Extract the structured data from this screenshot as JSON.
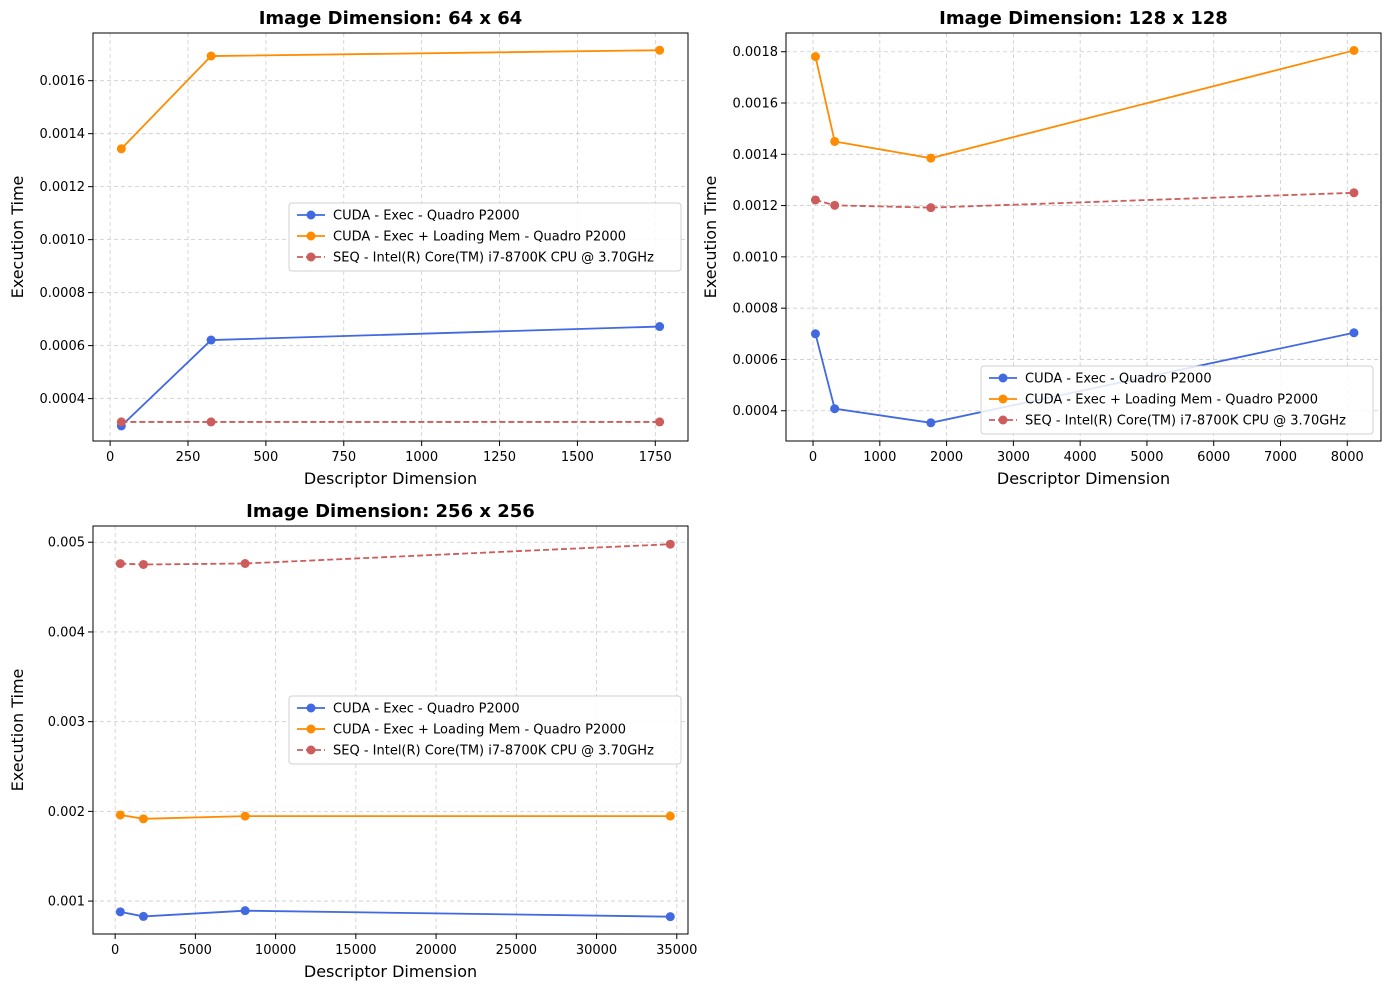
{
  "colors": {
    "cuda_exec": "#4169e1",
    "cuda_exec_mem": "#ff8c00",
    "seq": "#cd5c5c",
    "grid": "#cccccc",
    "axes": "#000000"
  },
  "chart_data": [
    {
      "type": "line",
      "title": "Image Dimension: 64 x 64",
      "xlabel": "Descriptor Dimension",
      "ylabel": "Execution Time",
      "grid": true,
      "legend_position": "center-right",
      "xlim": [
        -55,
        1855
      ],
      "ylim": [
        0.00024,
        0.00178
      ],
      "xticks": [
        0,
        250,
        500,
        750,
        1000,
        1250,
        1500,
        1750
      ],
      "xtick_labels": [
        "0",
        "250",
        "500",
        "750",
        "1000",
        "1250",
        "1500",
        "1750"
      ],
      "yticks": [
        0.0004,
        0.0006,
        0.0008,
        0.001,
        0.0012,
        0.0014,
        0.0016
      ],
      "ytick_labels": [
        "0.0004",
        "0.0006",
        "0.0008",
        "0.0010",
        "0.0012",
        "0.0014",
        "0.0016"
      ],
      "series": [
        {
          "name": "CUDA - Exec - Quadro P2000",
          "key": "cuda_exec",
          "style": "solid",
          "x": [
            36,
            324,
            1764
          ],
          "y": [
            0.000297,
            0.000621,
            0.000672
          ]
        },
        {
          "name": "CUDA - Exec + Loading Mem - Quadro P2000",
          "key": "cuda_exec_mem",
          "style": "solid",
          "x": [
            36,
            324,
            1764
          ],
          "y": [
            0.001343,
            0.001693,
            0.001715
          ]
        },
        {
          "name": "SEQ - Intel(R) Core(TM) i7-8700K CPU @ 3.70GHz",
          "key": "seq",
          "style": "dashed",
          "x": [
            36,
            324,
            1764
          ],
          "y": [
            0.000312,
            0.000312,
            0.000312
          ]
        }
      ]
    },
    {
      "type": "line",
      "title": "Image Dimension: 128 x 128",
      "xlabel": "Descriptor Dimension",
      "ylabel": "Execution Time",
      "grid": true,
      "legend_position": "lower-right",
      "xlim": [
        -405,
        8505
      ],
      "ylim": [
        0.000282,
        0.001873
      ],
      "xticks": [
        0,
        1000,
        2000,
        3000,
        4000,
        5000,
        6000,
        7000,
        8000
      ],
      "xtick_labels": [
        "0",
        "1000",
        "2000",
        "3000",
        "4000",
        "5000",
        "6000",
        "7000",
        "8000"
      ],
      "yticks": [
        0.0004,
        0.0006,
        0.0008,
        0.001,
        0.0012,
        0.0014,
        0.0016,
        0.0018
      ],
      "ytick_labels": [
        "0.0004",
        "0.0006",
        "0.0008",
        "0.0010",
        "0.0012",
        "0.0014",
        "0.0016",
        "0.0018"
      ],
      "series": [
        {
          "name": "CUDA - Exec - Quadro P2000",
          "key": "cuda_exec",
          "style": "solid",
          "x": [
            36,
            324,
            1764,
            8100
          ],
          "y": [
            0.0007,
            0.000408,
            0.000353,
            0.000704
          ]
        },
        {
          "name": "CUDA - Exec + Loading Mem - Quadro P2000",
          "key": "cuda_exec_mem",
          "style": "solid",
          "x": [
            36,
            324,
            1764,
            8100
          ],
          "y": [
            0.001781,
            0.00145,
            0.001385,
            0.001805
          ]
        },
        {
          "name": "SEQ - Intel(R) Core(TM) i7-8700K CPU @ 3.70GHz",
          "key": "seq",
          "style": "dashed",
          "x": [
            36,
            324,
            1764,
            8100
          ],
          "y": [
            0.001222,
            0.001201,
            0.001192,
            0.00125
          ]
        }
      ]
    },
    {
      "type": "line",
      "title": "Image Dimension: 256 x 256",
      "xlabel": "Descriptor Dimension",
      "ylabel": "Execution Time",
      "grid": true,
      "legend_position": "center-right",
      "xlim": [
        -1380,
        35700
      ],
      "ylim": [
        0.000633,
        0.005181
      ],
      "xticks": [
        0,
        5000,
        10000,
        15000,
        20000,
        25000,
        30000,
        35000
      ],
      "xtick_labels": [
        "0",
        "5000",
        "10000",
        "15000",
        "20000",
        "25000",
        "30000",
        "35000"
      ],
      "yticks": [
        0.001,
        0.002,
        0.003,
        0.004,
        0.005
      ],
      "ytick_labels": [
        "0.001",
        "0.002",
        "0.003",
        "0.004",
        "0.005"
      ],
      "series": [
        {
          "name": "CUDA - Exec - Quadro P2000",
          "key": "cuda_exec",
          "style": "solid",
          "x": [
            324,
            1764,
            8100,
            34596
          ],
          "y": [
            0.00088,
            0.000829,
            0.000893,
            0.000826
          ]
        },
        {
          "name": "CUDA - Exec + Loading Mem - Quadro P2000",
          "key": "cuda_exec_mem",
          "style": "solid",
          "x": [
            324,
            1764,
            8100,
            34596
          ],
          "y": [
            0.00196,
            0.001917,
            0.001947,
            0.001947
          ]
        },
        {
          "name": "SEQ - Intel(R) Core(TM) i7-8700K CPU @ 3.70GHz",
          "key": "seq",
          "style": "dashed",
          "x": [
            324,
            1764,
            8100,
            34596
          ],
          "y": [
            0.004762,
            0.004752,
            0.004763,
            0.004978
          ]
        }
      ]
    }
  ]
}
